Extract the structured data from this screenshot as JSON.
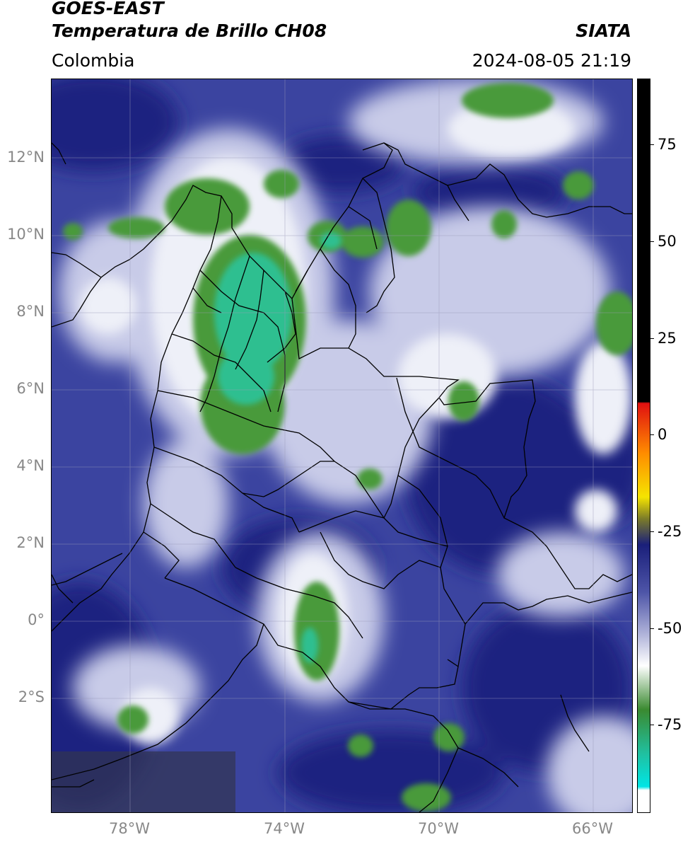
{
  "header": {
    "satellite": "GOES-EAST",
    "product": "Temperatura de Brillo CH08",
    "brand": "SIATA",
    "region": "Colombia",
    "timestamp": "2024-08-05 21:19"
  },
  "axes": {
    "lat_labels": [
      "12°N",
      "10°N",
      "8°N",
      "6°N",
      "4°N",
      "2°N",
      "0°",
      "2°S"
    ],
    "lon_labels": [
      "78°W",
      "74°W",
      "70°W",
      "66°W"
    ]
  },
  "colorbar": {
    "tick_labels": [
      "75",
      "50",
      "25",
      "0",
      "-25",
      "-50",
      "-75"
    ],
    "colors": {
      "hot": "#000000",
      "red": "#e01010",
      "orange": "#ff8c00",
      "yellow": "#f5e400",
      "olive": "#7a7a2a",
      "dark_blue": "#1a1f7a",
      "mid_blue": "#4e55a8",
      "lavender": "#b5b8dc",
      "white": "#ffffff",
      "green": "#3a8a30",
      "teal": "#20c0a0",
      "cyan": "#00e5e5"
    }
  },
  "map_colors": {
    "background": "#3b44a0",
    "deep": "#1b2480",
    "light": "#c8cbe8",
    "cloud_white": "#eef0f8",
    "cloud_green": "#4a9a3a",
    "cloud_teal": "#2fbf90",
    "land_shadow": "#323450"
  }
}
